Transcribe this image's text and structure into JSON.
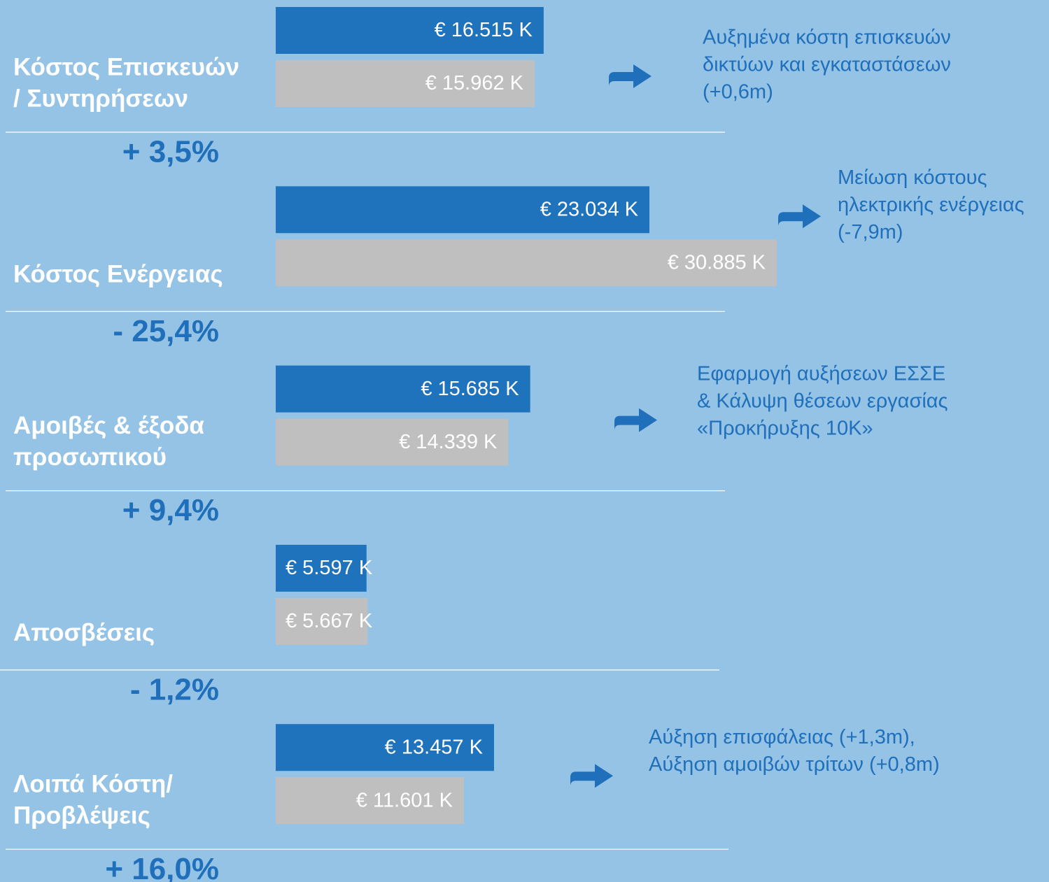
{
  "chart_data": {
    "type": "bar",
    "orientation": "horizontal",
    "categories": [
      [
        "Κόστος Επισκευών",
        "/ Συντηρήσεων"
      ],
      [
        "Κόστος Ενέργειας"
      ],
      [
        "Αμοιβές & έξοδα",
        "προσωπικού"
      ],
      [
        "Αποσβέσεις"
      ],
      [
        "Λοιπά Κόστη/",
        "Προβλέψεις"
      ]
    ],
    "series": [
      {
        "color": "#1f72bc",
        "values": [
          16515,
          23034,
          15685,
          5597,
          13457
        ],
        "value_labels": [
          "€ 16.515 K",
          "€ 23.034 K",
          "€ 15.685 K",
          "€ 5.597 K",
          "€ 13.457 K"
        ]
      },
      {
        "color": "#bfbfbf",
        "values": [
          15962,
          30885,
          14339,
          5667,
          11601
        ],
        "value_labels": [
          "€ 15.962 K",
          "€ 30.885 K",
          "€ 14.339 K",
          "€ 5.667 K",
          "€ 11.601 K"
        ]
      }
    ],
    "changes": [
      "+ 3,5%",
      "- 25,4%",
      "+ 9,4%",
      "- 1,2%",
      "+ 16,0%"
    ],
    "notes": [
      [
        "Αυξημένα κόστη επισκευών",
        "δικτύων και εγκαταστάσεων",
        "(+0,6m)"
      ],
      [
        "Μείωση κόστους",
        "ηλεκτρικής ενέργειας",
        "(-7,9m)"
      ],
      [
        "Εφαρμογή αυξήσεων ΕΣΣΕ",
        "& Κάλυψη θέσεων εργασίας",
        "«Προκήρυξης 10Κ»"
      ],
      [],
      [
        "Αύξηση επισφάλειας (+1,3m),",
        "Αύξηση αμοιβών τρίτων (+0,8m)"
      ]
    ]
  }
}
